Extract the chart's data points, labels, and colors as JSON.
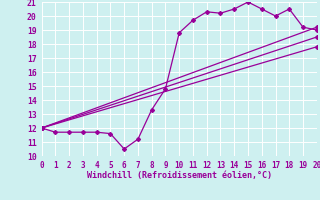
{
  "xlabel": "Windchill (Refroidissement éolien,°C)",
  "xlim": [
    0,
    20
  ],
  "ylim": [
    10,
    21
  ],
  "xticks": [
    0,
    1,
    2,
    3,
    4,
    5,
    6,
    7,
    8,
    9,
    10,
    11,
    12,
    13,
    14,
    15,
    16,
    17,
    18,
    19,
    20
  ],
  "yticks": [
    10,
    11,
    12,
    13,
    14,
    15,
    16,
    17,
    18,
    19,
    20,
    21
  ],
  "bg_color": "#cef0f0",
  "line_color": "#990099",
  "grid_color": "#ffffff",
  "lines": [
    {
      "x": [
        0,
        1,
        2,
        3,
        4,
        5,
        6,
        7,
        8,
        9,
        10,
        11,
        12,
        13,
        14,
        15,
        16,
        17,
        18,
        19,
        20
      ],
      "y": [
        12,
        11.7,
        11.7,
        11.7,
        11.7,
        11.6,
        10.5,
        11.2,
        13.3,
        14.8,
        18.8,
        19.7,
        20.3,
        20.2,
        20.5,
        21.0,
        20.5,
        20.0,
        20.5,
        19.2,
        19.0
      ],
      "has_markers": true
    },
    {
      "x": [
        0,
        20
      ],
      "y": [
        12,
        19.2
      ],
      "has_markers": true
    },
    {
      "x": [
        0,
        20
      ],
      "y": [
        12,
        18.5
      ],
      "has_markers": true
    },
    {
      "x": [
        0,
        20
      ],
      "y": [
        12,
        17.8
      ],
      "has_markers": true
    }
  ],
  "marker": "D",
  "markersize": 2.0,
  "linewidth": 0.9,
  "tick_fontsize": 5.5,
  "xlabel_fontsize": 6.0
}
